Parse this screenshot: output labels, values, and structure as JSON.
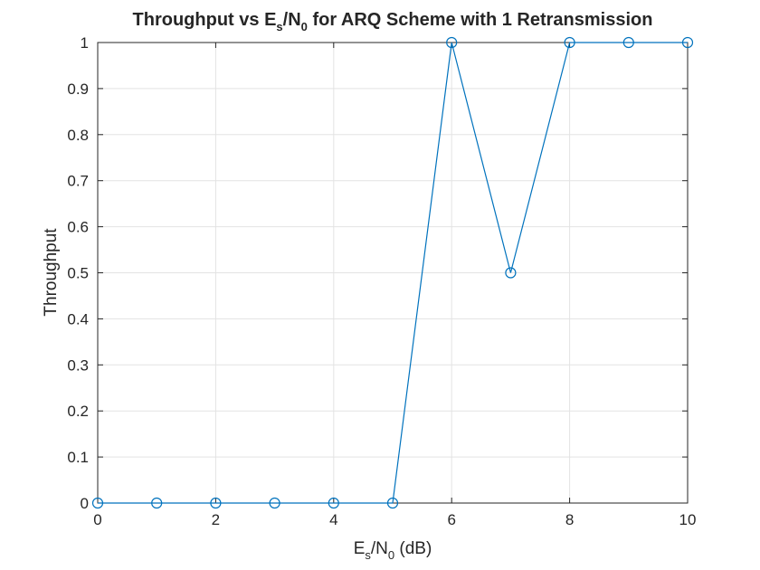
{
  "chart_data": {
    "type": "line",
    "title": {
      "prefix": "Throughput vs E",
      "sub1": "s",
      "middle": "/N",
      "sub2": "0",
      "suffix": " for ARQ Scheme with 1 Retransmission"
    },
    "xlabel": {
      "prefix": "E",
      "sub1": "s",
      "middle": "/N",
      "sub2": "0",
      "suffix": " (dB)"
    },
    "ylabel": "Throughput",
    "xlim": [
      0,
      10
    ],
    "ylim": [
      0,
      1
    ],
    "xticks": [
      "0",
      "2",
      "4",
      "6",
      "8",
      "10"
    ],
    "yticks": [
      "0",
      "0.1",
      "0.2",
      "0.3",
      "0.4",
      "0.5",
      "0.6",
      "0.7",
      "0.8",
      "0.9",
      "1"
    ],
    "grid": true,
    "marker": "circle",
    "color": "#0072BD",
    "series": [
      {
        "x": [
          0,
          1,
          2,
          3,
          4,
          5,
          6,
          7,
          8,
          9,
          10
        ],
        "values": [
          0,
          0,
          0,
          0,
          0,
          0,
          1,
          0.5,
          1,
          1,
          1
        ]
      }
    ]
  }
}
